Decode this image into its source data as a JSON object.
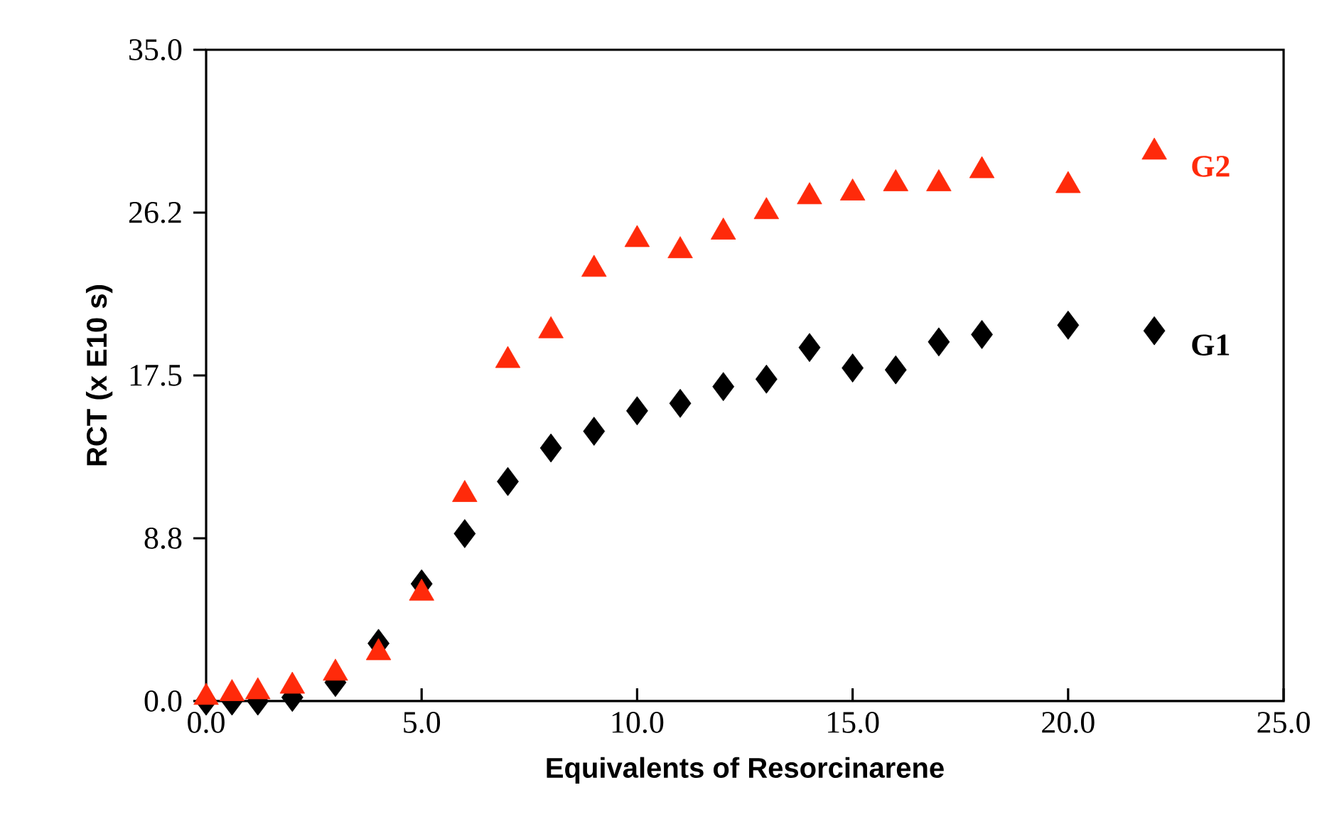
{
  "chart_data": {
    "type": "scatter",
    "xlabel": "Equivalents of Resorcinarene",
    "ylabel": "RCT (x E10 s)",
    "x": [
      0,
      0.6,
      1.2,
      2,
      3,
      4,
      5,
      6,
      7,
      8,
      9,
      10,
      11,
      12,
      13,
      14,
      15,
      16,
      17,
      18,
      20,
      22
    ],
    "series": [
      {
        "name": "G1",
        "color": "#000000",
        "marker": "diamond",
        "values": [
          0.0,
          0.0,
          0.0,
          0.2,
          1.0,
          3.1,
          6.3,
          9.0,
          11.8,
          13.6,
          14.5,
          15.6,
          16.0,
          16.9,
          17.3,
          19.0,
          17.9,
          17.8,
          19.3,
          19.7,
          20.2,
          19.9
        ]
      },
      {
        "name": "G2",
        "color": "#ff2a0a",
        "marker": "triangle",
        "values": [
          0.2,
          0.4,
          0.5,
          0.8,
          1.5,
          2.6,
          5.8,
          11.1,
          18.3,
          19.9,
          23.2,
          24.8,
          24.2,
          25.2,
          26.3,
          27.1,
          27.3,
          27.8,
          27.8,
          28.5,
          27.7,
          29.5
        ]
      }
    ],
    "xlim": [
      0,
      25
    ],
    "ylim": [
      0,
      35
    ],
    "xticks": [
      {
        "value": 0,
        "label": "0.0"
      },
      {
        "value": 5,
        "label": "5.0"
      },
      {
        "value": 10,
        "label": "10.0"
      },
      {
        "value": 15,
        "label": "15.0"
      },
      {
        "value": 20,
        "label": "20.0"
      },
      {
        "value": 25,
        "label": "25.0"
      }
    ],
    "yticks": [
      {
        "value": 0,
        "label": "0.0"
      },
      {
        "value": 8.75,
        "label": "8.8"
      },
      {
        "value": 17.5,
        "label": "17.5"
      },
      {
        "value": 26.25,
        "label": "26.2"
      },
      {
        "value": 35,
        "label": "35.0"
      }
    ]
  }
}
